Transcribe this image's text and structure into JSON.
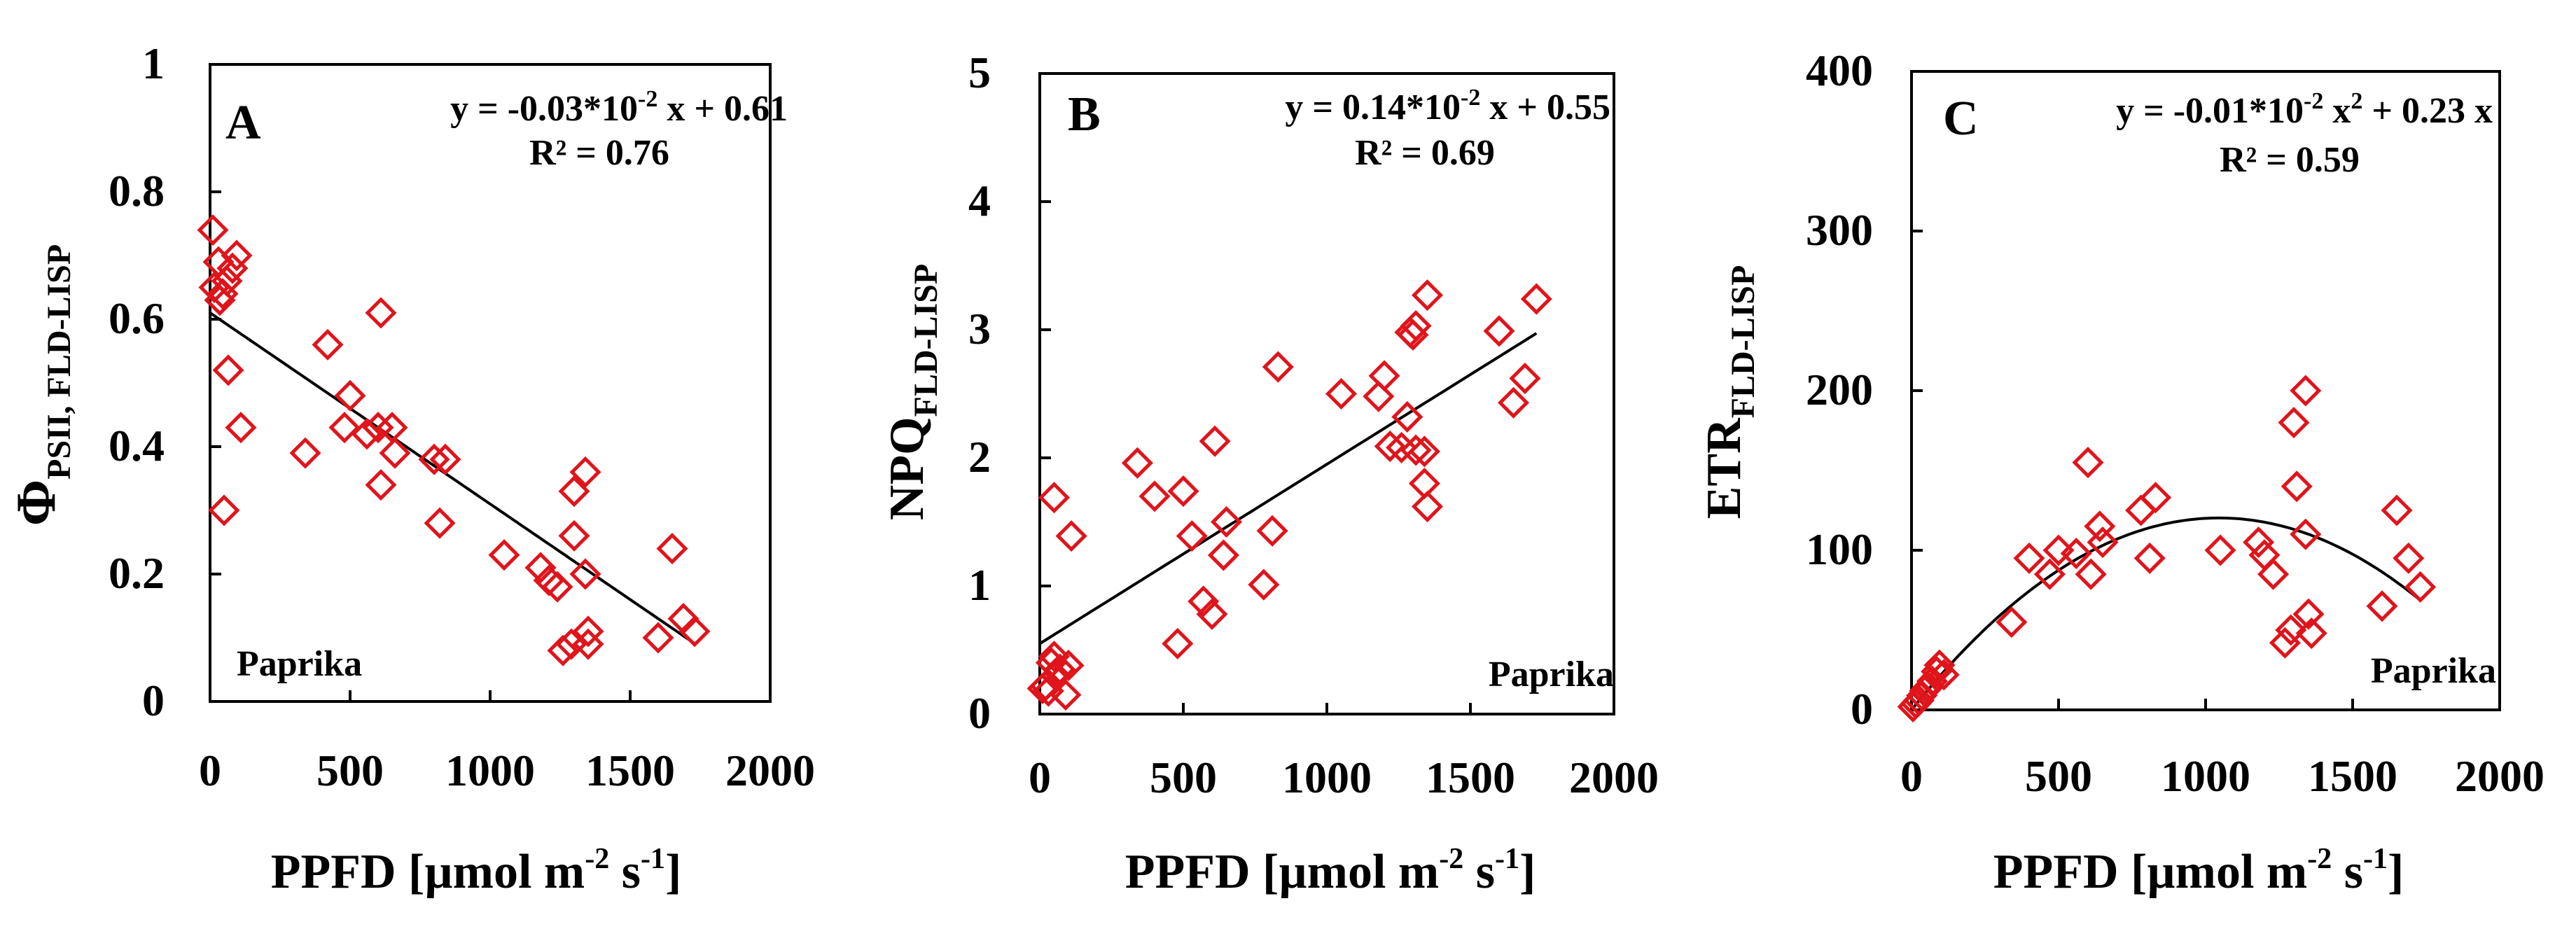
{
  "figure_title": "",
  "colors": {
    "marker": "#e0141b",
    "axis": "#000000",
    "fit_line": "#000000",
    "background": "#ffffff"
  },
  "marker_shape": "diamond-outline",
  "chart_data": [
    {
      "type": "scatter",
      "panel_letter": "A",
      "ylabel": {
        "main": "Φ",
        "sub": "PSII, FLD-LISP"
      },
      "xlabel": {
        "main": "PPFD [µmol m",
        "sup1": "-2",
        "mid": " s",
        "sup2": "-1",
        "end": "]"
      },
      "equation": "y = -0.03*10-2 x + 0.61",
      "equation_parts": {
        "pre": "y = -0.03*10",
        "sup": "-2",
        "post": " x + 0.61"
      },
      "r2": "R² = 0.76",
      "crop_label": "Paprika",
      "xlim": [
        0,
        2000
      ],
      "ylim": [
        0,
        1
      ],
      "x_ticks": [
        0,
        500,
        1000,
        1500,
        2000
      ],
      "x_tick_labels": [
        "0",
        "500",
        "1000",
        "1500",
        "2000"
      ],
      "y_ticks": [
        0,
        0.2,
        0.4,
        0.6,
        0.8,
        1
      ],
      "y_tick_labels": [
        "0",
        "0.2",
        "0.4",
        "0.6",
        "0.8",
        "1"
      ],
      "fit": {
        "kind": "linear",
        "coefficients": [
          0.61,
          -0.0003
        ],
        "x_range": [
          0,
          1730
        ]
      },
      "points": [
        [
          10,
          0.74
        ],
        [
          15,
          0.65
        ],
        [
          30,
          0.69
        ],
        [
          35,
          0.63
        ],
        [
          45,
          0.64
        ],
        [
          60,
          0.66
        ],
        [
          80,
          0.68
        ],
        [
          95,
          0.7
        ],
        [
          65,
          0.52
        ],
        [
          110,
          0.43
        ],
        [
          50,
          0.3
        ],
        [
          340,
          0.39
        ],
        [
          420,
          0.56
        ],
        [
          500,
          0.48
        ],
        [
          480,
          0.43
        ],
        [
          560,
          0.42
        ],
        [
          600,
          0.43
        ],
        [
          610,
          0.61
        ],
        [
          610,
          0.34
        ],
        [
          650,
          0.43
        ],
        [
          660,
          0.39
        ],
        [
          800,
          0.38
        ],
        [
          820,
          0.28
        ],
        [
          840,
          0.38
        ],
        [
          1050,
          0.23
        ],
        [
          1180,
          0.21
        ],
        [
          1210,
          0.19
        ],
        [
          1240,
          0.18
        ],
        [
          1260,
          0.08
        ],
        [
          1290,
          0.09
        ],
        [
          1300,
          0.33
        ],
        [
          1300,
          0.26
        ],
        [
          1340,
          0.36
        ],
        [
          1340,
          0.2
        ],
        [
          1350,
          0.11
        ],
        [
          1350,
          0.09
        ],
        [
          1600,
          0.1
        ],
        [
          1650,
          0.24
        ],
        [
          1690,
          0.13
        ],
        [
          1730,
          0.11
        ]
      ]
    },
    {
      "type": "scatter",
      "panel_letter": "B",
      "ylabel": {
        "main": "NPQ",
        "sub": "FLD-LISP"
      },
      "xlabel": {
        "main": "PPFD [µmol m",
        "sup1": "-2",
        "mid": " s",
        "sup2": "-1",
        "end": "]"
      },
      "equation": "y = 0.14*10-2 x + 0.55",
      "equation_parts": {
        "pre": "y = 0.14*10",
        "sup": "-2",
        "post": " x + 0.55"
      },
      "r2": "R² = 0.69",
      "crop_label": "Paprika",
      "xlim": [
        0,
        2000
      ],
      "ylim": [
        0,
        5
      ],
      "x_ticks": [
        0,
        500,
        1000,
        1500,
        2000
      ],
      "x_tick_labels": [
        "0",
        "500",
        "1000",
        "1500",
        "2000"
      ],
      "y_ticks": [
        0,
        1,
        2,
        3,
        4,
        5
      ],
      "y_tick_labels": [
        "0",
        "1",
        "2",
        "3",
        "4",
        "5"
      ],
      "fit": {
        "kind": "linear",
        "coefficients": [
          0.55,
          0.0014
        ],
        "x_range": [
          0,
          1730
        ]
      },
      "points": [
        [
          10,
          0.2
        ],
        [
          20,
          0.22
        ],
        [
          30,
          0.18
        ],
        [
          40,
          0.4
        ],
        [
          50,
          0.45
        ],
        [
          55,
          0.3
        ],
        [
          70,
          0.35
        ],
        [
          90,
          0.15
        ],
        [
          100,
          0.38
        ],
        [
          110,
          1.39
        ],
        [
          50,
          1.69
        ],
        [
          340,
          1.96
        ],
        [
          400,
          1.7
        ],
        [
          480,
          0.55
        ],
        [
          500,
          1.74
        ],
        [
          530,
          1.39
        ],
        [
          570,
          0.88
        ],
        [
          600,
          0.78
        ],
        [
          610,
          2.13
        ],
        [
          640,
          1.24
        ],
        [
          650,
          1.5
        ],
        [
          780,
          1.01
        ],
        [
          810,
          1.43
        ],
        [
          830,
          2.71
        ],
        [
          1050,
          2.5
        ],
        [
          1180,
          2.48
        ],
        [
          1200,
          2.64
        ],
        [
          1220,
          2.09
        ],
        [
          1260,
          2.08
        ],
        [
          1280,
          2.32
        ],
        [
          1290,
          2.98
        ],
        [
          1300,
          2.96
        ],
        [
          1310,
          3.03
        ],
        [
          1310,
          2.06
        ],
        [
          1340,
          1.8
        ],
        [
          1340,
          2.05
        ],
        [
          1350,
          3.27
        ],
        [
          1350,
          1.62
        ],
        [
          1600,
          2.99
        ],
        [
          1650,
          2.43
        ],
        [
          1690,
          2.62
        ],
        [
          1730,
          3.24
        ]
      ]
    },
    {
      "type": "scatter",
      "panel_letter": "C",
      "ylabel": {
        "main": "ETR",
        "sub": "FLD-LISP"
      },
      "xlabel": {
        "main": "PPFD [µmol m",
        "sup1": "-2",
        "mid": " s",
        "sup2": "-1",
        "end": "]"
      },
      "equation": "y = -0.01*10-2 x2 + 0.23 x",
      "equation_parts": {
        "pre": "y = -0.01*10",
        "sup": "-2",
        "mid": " x",
        "sup2": "2",
        "post": " + 0.23 x"
      },
      "r2": "R² = 0.59",
      "crop_label": "Paprika",
      "xlim": [
        0,
        2000
      ],
      "ylim": [
        0,
        400
      ],
      "x_ticks": [
        0,
        500,
        1000,
        1500,
        2000
      ],
      "x_tick_labels": [
        "0",
        "500",
        "1000",
        "1500",
        "2000"
      ],
      "y_ticks": [
        0,
        100,
        200,
        300,
        400
      ],
      "y_tick_labels": [
        "0",
        "100",
        "200",
        "300",
        "400"
      ],
      "fit": {
        "kind": "quadratic",
        "coefficients": [
          0,
          0.23,
          -0.00011
        ],
        "x_range": [
          0,
          1730
        ]
      },
      "points": [
        [
          5,
          2
        ],
        [
          15,
          4
        ],
        [
          25,
          6
        ],
        [
          35,
          9
        ],
        [
          45,
          12
        ],
        [
          55,
          14
        ],
        [
          70,
          18
        ],
        [
          85,
          24
        ],
        [
          95,
          28
        ],
        [
          110,
          22
        ],
        [
          340,
          55
        ],
        [
          400,
          95
        ],
        [
          470,
          85
        ],
        [
          500,
          100
        ],
        [
          560,
          98
        ],
        [
          600,
          155
        ],
        [
          610,
          85
        ],
        [
          640,
          115
        ],
        [
          650,
          105
        ],
        [
          780,
          125
        ],
        [
          810,
          95
        ],
        [
          830,
          133
        ],
        [
          1050,
          100
        ],
        [
          1180,
          105
        ],
        [
          1200,
          97
        ],
        [
          1230,
          85
        ],
        [
          1270,
          42
        ],
        [
          1290,
          50
        ],
        [
          1300,
          180
        ],
        [
          1310,
          140
        ],
        [
          1340,
          110
        ],
        [
          1340,
          200
        ],
        [
          1350,
          60
        ],
        [
          1360,
          48
        ],
        [
          1600,
          65
        ],
        [
          1650,
          125
        ],
        [
          1690,
          95
        ],
        [
          1730,
          77
        ]
      ]
    }
  ]
}
